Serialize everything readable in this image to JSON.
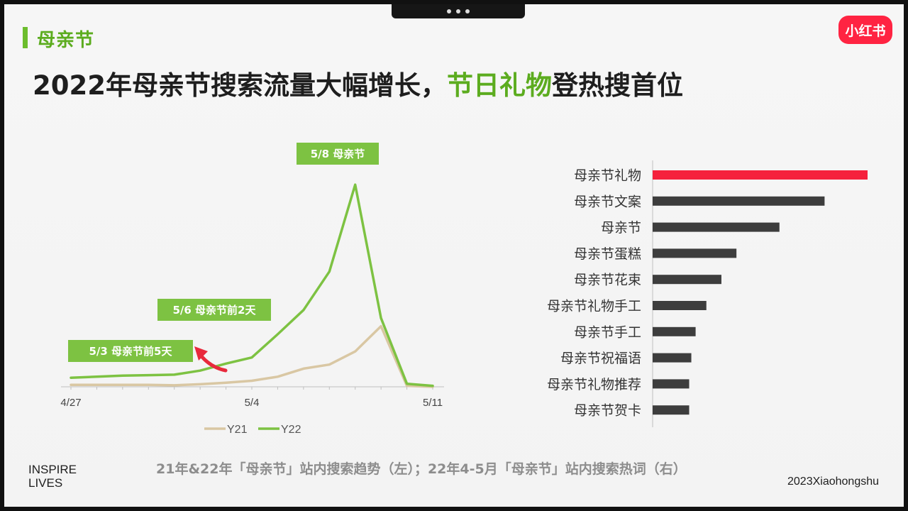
{
  "section_title": "母亲节",
  "logo_text": "小红书",
  "headline": {
    "part1": "2022年母亲节搜索流量大幅增长，",
    "highlight": "节日礼物",
    "part2": "登热搜首位"
  },
  "caption": "21年&22年「母亲节」站内搜索趋势（左）；22年4-5月「母亲节」站内搜索热词（右）",
  "footer": {
    "line1": "INSPIRE",
    "line2": "LIVES",
    "right": "2023Xiaohongshu"
  },
  "colors": {
    "accent_green": "#7dc242",
    "y21": "#d9c7a3",
    "y22": "#7dc242",
    "highlight_bar": "#f5213d",
    "bar": "#3d3d3d",
    "arrow": "#e8293c"
  },
  "chart_data": [
    {
      "type": "line",
      "x": [
        "4/27",
        "4/28",
        "4/29",
        "4/30",
        "5/1",
        "5/2",
        "5/3",
        "5/4",
        "5/5",
        "5/6",
        "5/7",
        "5/8",
        "5/9",
        "5/10",
        "5/11"
      ],
      "x_tick_labels": [
        "4/27",
        "5/4",
        "5/11"
      ],
      "series": [
        {
          "name": "Y21",
          "values": [
            2,
            2,
            2,
            2,
            1.5,
            2.5,
            4,
            6,
            10,
            18,
            22,
            35,
            60,
            1,
            0
          ]
        },
        {
          "name": "Y22",
          "values": [
            9,
            10,
            11,
            11.5,
            12,
            16,
            23,
            29,
            52,
            76,
            114,
            200,
            68,
            3,
            1
          ]
        }
      ],
      "ylim": [
        0,
        210
      ],
      "legend": "bottom",
      "annotations": [
        {
          "text": "5/8 母亲节",
          "x": "5/8"
        },
        {
          "text": "5/6 母亲节前2天",
          "x": "5/6"
        },
        {
          "text": "5/3 母亲节前5天",
          "x": "5/3"
        }
      ]
    },
    {
      "type": "bar",
      "orientation": "horizontal",
      "categories": [
        "母亲节礼物",
        "母亲节文案",
        "母亲节",
        "母亲节蛋糕",
        "母亲节花束",
        "母亲节礼物手工",
        "母亲节手工",
        "母亲节祝福语",
        "母亲节礼物推荐",
        "母亲节贺卡"
      ],
      "values": [
        100,
        80,
        59,
        39,
        32,
        25,
        20,
        18,
        17,
        17
      ],
      "xlim": [
        0,
        100
      ]
    }
  ]
}
